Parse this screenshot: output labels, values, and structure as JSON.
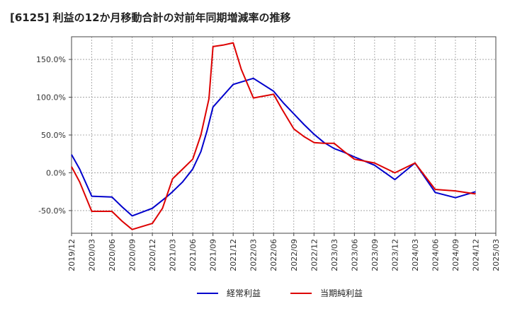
{
  "chart_data": {
    "type": "line",
    "title": "[6125]  利益の12か月移動合計の対前年同期増減率の推移",
    "xlabel": "",
    "ylabel": "",
    "ylim": [
      -80,
      180
    ],
    "yticks": [
      -50,
      0,
      50,
      100,
      150
    ],
    "ytick_labels": [
      "-50.0%",
      "0.0%",
      "50.0%",
      "100.0%",
      "150.0%"
    ],
    "x_ticks": [
      "2019/12",
      "2020/03",
      "2020/06",
      "2020/09",
      "2020/12",
      "2021/03",
      "2021/06",
      "2021/09",
      "2021/12",
      "2022/03",
      "2022/06",
      "2022/09",
      "2022/12",
      "2023/03",
      "2023/06",
      "2023/09",
      "2023/12",
      "2024/03",
      "2024/06",
      "2024/09",
      "2024/12",
      "2025/03"
    ],
    "grid": true,
    "legend_position": "bottom-center",
    "series": [
      {
        "name": "経常利益",
        "color": "#0000cc",
        "points": [
          [
            0,
            24
          ],
          [
            0.4,
            5
          ],
          [
            1,
            -31
          ],
          [
            2,
            -32
          ],
          [
            2.5,
            -45
          ],
          [
            3,
            -57
          ],
          [
            4,
            -47
          ],
          [
            4.7,
            -32
          ],
          [
            5,
            -25
          ],
          [
            5.5,
            -12
          ],
          [
            6,
            5
          ],
          [
            6.4,
            28
          ],
          [
            6.7,
            55
          ],
          [
            7,
            87
          ],
          [
            8,
            117
          ],
          [
            9,
            125
          ],
          [
            10,
            108
          ],
          [
            10.5,
            92
          ],
          [
            11,
            78
          ],
          [
            11.5,
            64
          ],
          [
            12,
            51
          ],
          [
            12.5,
            40
          ],
          [
            13,
            32
          ],
          [
            13.5,
            27
          ],
          [
            14,
            21
          ],
          [
            15,
            10
          ],
          [
            16,
            -9
          ],
          [
            17,
            13
          ],
          [
            18,
            -26
          ],
          [
            19,
            -33
          ],
          [
            20,
            -25
          ]
        ]
      },
      {
        "name": "当期純利益",
        "color": "#dd0000",
        "points": [
          [
            0,
            8
          ],
          [
            0.4,
            -12
          ],
          [
            1,
            -51
          ],
          [
            2,
            -51
          ],
          [
            2.5,
            -64
          ],
          [
            3,
            -75
          ],
          [
            4,
            -67
          ],
          [
            4.5,
            -47
          ],
          [
            5,
            -8
          ],
          [
            5.5,
            5
          ],
          [
            6,
            18
          ],
          [
            6.4,
            50
          ],
          [
            6.8,
            98
          ],
          [
            7,
            167
          ],
          [
            7.5,
            169
          ],
          [
            8,
            172
          ],
          [
            8.4,
            137
          ],
          [
            9,
            99
          ],
          [
            10,
            104
          ],
          [
            10.4,
            85
          ],
          [
            11,
            58
          ],
          [
            11.5,
            48
          ],
          [
            12,
            40
          ],
          [
            12.5,
            39
          ],
          [
            13,
            39
          ],
          [
            13.5,
            28
          ],
          [
            14,
            18
          ],
          [
            15,
            13
          ],
          [
            16,
            0
          ],
          [
            17,
            13
          ],
          [
            18,
            -22
          ],
          [
            19,
            -24
          ],
          [
            20,
            -28
          ]
        ]
      }
    ]
  }
}
